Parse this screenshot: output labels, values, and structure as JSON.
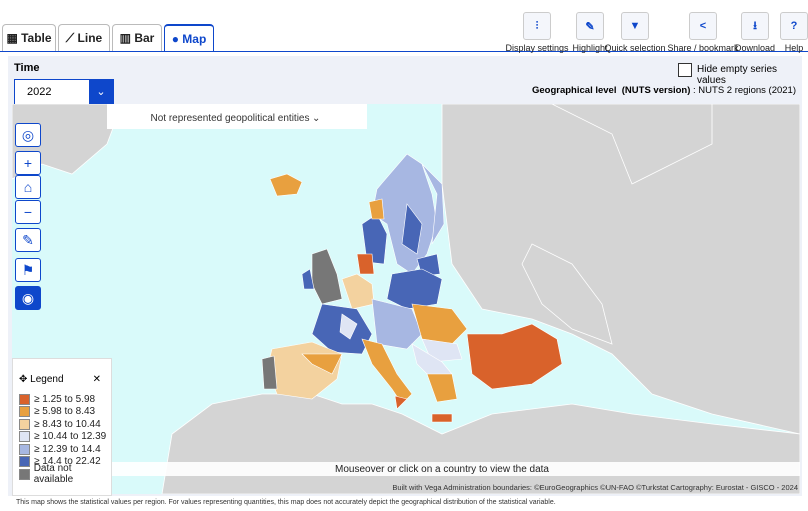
{
  "tabs": [
    "Table",
    "Line",
    "Bar",
    "Map"
  ],
  "toolbar": [
    "Display settings",
    "Highlight",
    "Quick selection",
    "Share / bookmark",
    "Download",
    "Help"
  ],
  "time": {
    "label": "Time",
    "value": "2022"
  },
  "hide_empty": "Hide empty series values",
  "geo_level": {
    "label": "Geographical level",
    "version": "(NUTS version)",
    "value": ": NUTS 2 regions (2021)"
  },
  "not_represented": "Not represented geopolitical entities",
  "legend": {
    "title": "Legend",
    "items": [
      {
        "label": "≥ 1.25 to 5.98",
        "color": "#d9622b"
      },
      {
        "label": "≥ 5.98 to 8.43",
        "color": "#e8a03f"
      },
      {
        "label": "≥ 8.43 to 10.44",
        "color": "#f3d29f"
      },
      {
        "label": "≥ 10.44 to 12.39",
        "color": "#dfe5f4"
      },
      {
        "label": "≥ 12.39 to 14.4",
        "color": "#a7b7e2"
      },
      {
        "label": "≥ 14.4 to 22.42",
        "color": "#4866b6"
      },
      {
        "label": "Data not available",
        "color": "#777777"
      }
    ]
  },
  "map_hint": "Mouseover or click on a country to view the data",
  "credits": "Built with Vega Administration boundaries: ©EuroGeographics ©UN-FAO ©Turkstat Cartography: Eurostat - GISCO - 2024",
  "footnote": "This map shows the statistical values per region. For values representing quantities, this map does not accurately depict the geographical distribution of the statistical variable."
}
